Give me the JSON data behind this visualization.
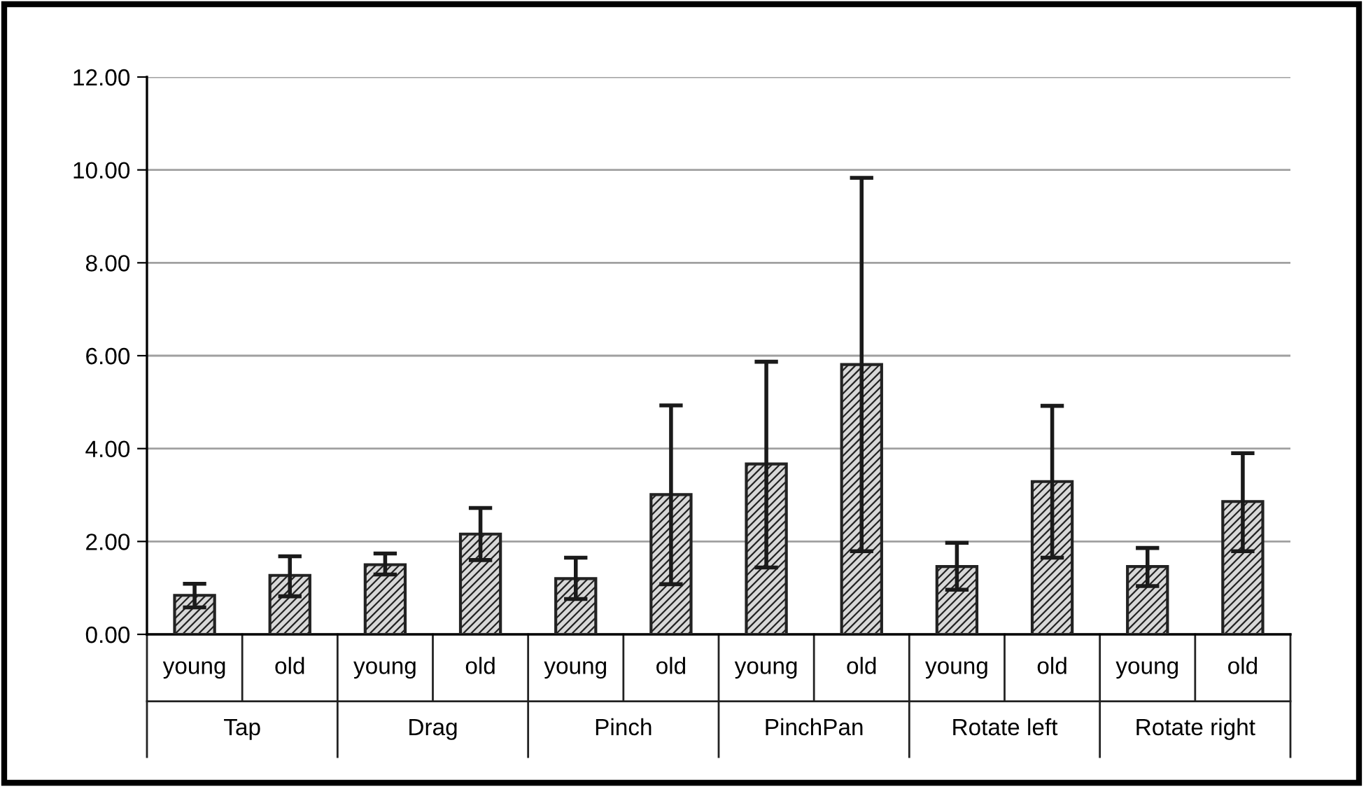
{
  "chart_data": {
    "type": "bar",
    "categories": [
      "young",
      "old",
      "young",
      "old",
      "young",
      "old",
      "young",
      "old",
      "young",
      "old",
      "young",
      "old"
    ],
    "annotations": [
      "Tap",
      "Drag",
      "Pinch",
      "PinchPan",
      "Rotate left",
      "Rotate right"
    ],
    "values": [
      0.84,
      1.27,
      1.5,
      2.16,
      1.2,
      3.01,
      3.67,
      5.81,
      1.46,
      3.29,
      1.46,
      2.86
    ],
    "errors": [
      [
        0.58,
        1.09
      ],
      [
        0.82,
        1.68
      ],
      [
        1.29,
        1.74
      ],
      [
        1.6,
        2.72
      ],
      [
        0.76,
        1.65
      ],
      [
        1.08,
        4.93
      ],
      [
        1.44,
        5.87
      ],
      [
        1.79,
        9.83
      ],
      [
        0.96,
        1.97
      ],
      [
        1.65,
        4.92
      ],
      [
        1.04,
        1.86
      ],
      [
        1.79,
        3.9
      ]
    ],
    "color": "#222222",
    "ylim": [
      0,
      12
    ],
    "yticks": [
      {
        "value": 0,
        "label": "0.00"
      },
      {
        "value": 2,
        "label": "2.00"
      },
      {
        "value": 4,
        "label": "4.00"
      },
      {
        "value": 6,
        "label": "6.00"
      },
      {
        "value": 8,
        "label": "8.00"
      },
      {
        "value": 10,
        "label": "10.00"
      },
      {
        "value": 12,
        "label": "12.00"
      }
    ],
    "grid": "y",
    "legend": false
  }
}
